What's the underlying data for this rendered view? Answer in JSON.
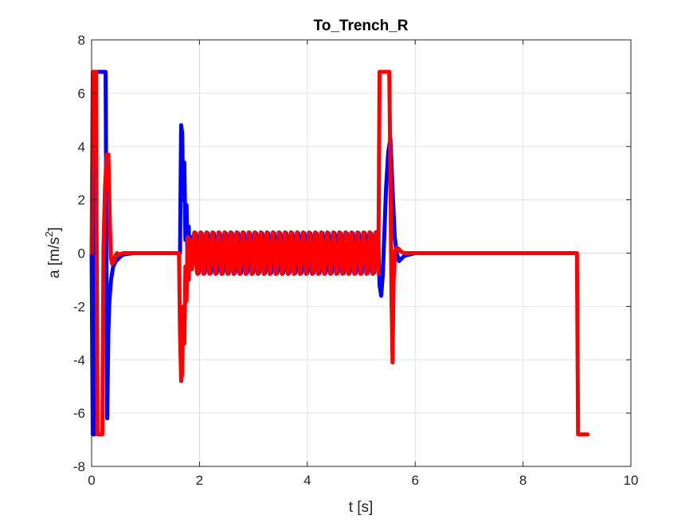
{
  "chart_data": {
    "type": "line",
    "title": "To_Trench_R",
    "xlabel": "t [s]",
    "ylabel": "a [m/s",
    "ylabel_sup": "2",
    "ylabel_end": "]",
    "xlim": [
      0,
      10
    ],
    "ylim": [
      -8,
      8
    ],
    "xticks": [
      0,
      2,
      4,
      6,
      8,
      10
    ],
    "yticks": [
      -8,
      -6,
      -4,
      -2,
      0,
      2,
      4,
      6,
      8
    ],
    "grid": true,
    "series": [
      {
        "color": "#0000ff",
        "segments": [
          {
            "x": [
              0,
              0.02,
              0.05,
              0.08,
              0.11,
              0.14,
              0.17,
              0.2,
              0.23,
              0.26,
              0.29,
              0.31,
              0.33,
              0.36,
              0.4,
              0.45,
              0.5,
              0.55,
              0.6,
              0.7,
              0.8,
              0.9,
              1.0,
              1.64
            ],
            "y": [
              0,
              -6.8,
              -6.8,
              6.8,
              6.8,
              6.8,
              6.8,
              6.8,
              6.8,
              6.8,
              -6.2,
              -3.0,
              -1.8,
              -1.0,
              -0.5,
              -0.3,
              -0.2,
              -0.1,
              -0.05,
              -0.02,
              0,
              0,
              0,
              0
            ]
          },
          {
            "x": [
              1.64,
              1.66,
              1.68,
              1.7,
              1.72,
              1.74,
              1.76,
              1.78,
              1.8,
              1.82,
              1.85,
              1.9
            ],
            "y": [
              0,
              4.8,
              4.5,
              2.0,
              3.4,
              0.5,
              1.8,
              -0.6,
              1.0,
              -0.5,
              0.6,
              -0.4
            ]
          },
          {
            "osc": true,
            "x_start": 1.9,
            "x_end": 5.3,
            "period": 0.112,
            "amplitude": 0.75,
            "phase": 0
          },
          {
            "x": [
              5.3,
              5.32,
              5.34,
              5.37,
              5.4,
              5.43,
              5.46,
              5.5,
              5.54,
              5.58,
              5.62,
              5.66,
              5.7,
              5.75,
              5.8,
              5.9,
              6.0
            ],
            "y": [
              0.8,
              0.2,
              -1.2,
              -1.6,
              -0.8,
              0.8,
              2.4,
              3.8,
              4.3,
              2.4,
              0.6,
              0,
              -0.3,
              -0.2,
              -0.1,
              -0.05,
              0
            ]
          },
          {
            "x": [
              6.0,
              8.2
            ],
            "y": [
              0,
              0
            ]
          }
        ]
      },
      {
        "color": "#ff0000",
        "segments": [
          {
            "x": [
              0,
              0.02,
              0.05,
              0.08,
              0.11,
              0.14,
              0.17,
              0.2,
              0.22,
              0.25,
              0.28,
              0.31,
              0.34,
              0.36,
              0.38,
              0.41,
              0.44,
              0.47,
              0.5,
              0.55,
              0.6,
              0.65,
              0.7,
              0.8,
              0.9,
              1.0,
              1.62
            ],
            "y": [
              0,
              6.8,
              6.8,
              6.8,
              -6.8,
              -6.8,
              -6.8,
              -6.8,
              0.2,
              2.5,
              3.7,
              3.7,
              1.0,
              -0.2,
              -0.4,
              -0.3,
              -0.1,
              0,
              -0.05,
              -0.02,
              0,
              0,
              0,
              0,
              0,
              0,
              0
            ]
          },
          {
            "x": [
              1.62,
              1.64,
              1.66,
              1.68,
              1.7,
              1.72,
              1.74,
              1.76,
              1.78,
              1.8,
              1.83,
              1.86,
              1.9
            ],
            "y": [
              0,
              -3.0,
              -4.8,
              -4.5,
              -2.0,
              -3.4,
              -0.5,
              -1.8,
              0.6,
              -1.0,
              0.5,
              -0.6,
              0.4
            ]
          },
          {
            "osc": true,
            "x_start": 1.9,
            "x_end": 5.32,
            "period": 0.112,
            "amplitude": 0.78,
            "phase": 1.2
          },
          {
            "x": [
              5.32,
              5.34,
              5.36,
              5.38,
              5.4,
              5.44,
              5.48,
              5.52,
              5.54,
              5.56,
              5.58,
              5.6,
              5.63,
              5.66,
              5.7,
              5.74,
              5.8,
              5.9,
              6.0
            ],
            "y": [
              0.4,
              6.8,
              6.8,
              6.8,
              6.8,
              6.8,
              6.8,
              6.8,
              3.0,
              -1.5,
              -4.1,
              -1.0,
              0.1,
              0.2,
              0.15,
              0.05,
              0,
              0,
              0
            ]
          },
          {
            "x": [
              6.0,
              8.6,
              9.0,
              9.02,
              9.05,
              9.1,
              9.2
            ],
            "y": [
              0,
              0,
              0,
              -6.8,
              -6.8,
              -6.8,
              -6.8
            ]
          }
        ]
      }
    ]
  }
}
